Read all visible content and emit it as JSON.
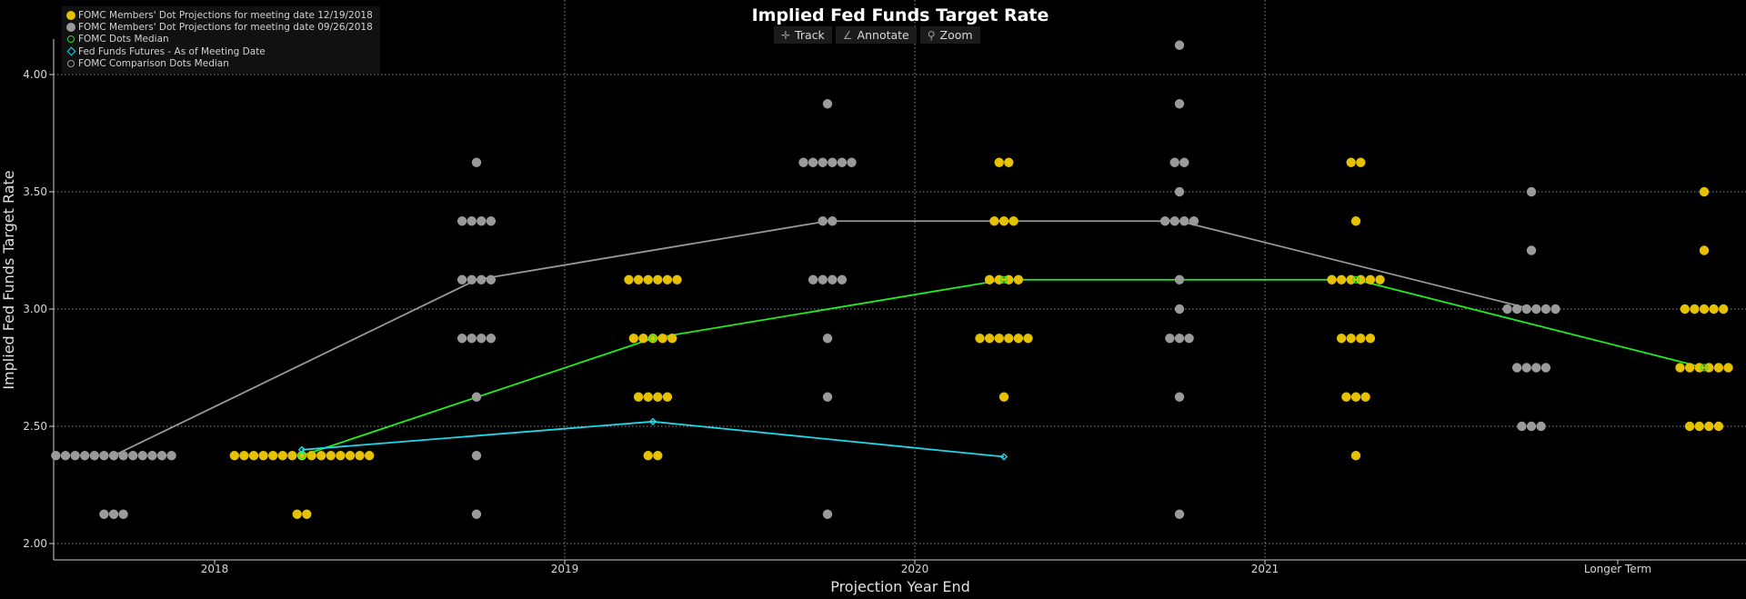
{
  "toolbar": {
    "track_label": "Track",
    "annotate_label": "Annotate",
    "zoom_label": "Zoom",
    "track_icon": "crosshair-icon",
    "annotate_icon": "pencil-icon",
    "zoom_icon": "magnifier-icon"
  },
  "chart_data": {
    "type": "scatter",
    "title": "Implied Fed Funds Target Rate",
    "xlabel": "Projection Year End",
    "ylabel": "Implied Fed Funds Target Rate",
    "ylim": [
      1.9,
      4.2
    ],
    "yticks": [
      2.0,
      2.5,
      3.0,
      3.5,
      4.0
    ],
    "ytick_labels": [
      "2.00",
      "2.50",
      "3.00",
      "3.50",
      "4.00"
    ],
    "categories": [
      "2018",
      "2019",
      "2020",
      "2021",
      "Longer Term"
    ],
    "grid": true,
    "legend_position": "top-left",
    "legend": [
      {
        "label": "FOMC Members' Dot Projections for meeting date 12/19/2018",
        "color": "#e6c100",
        "symbol": "dot"
      },
      {
        "label": "FOMC Members' Dot Projections for meeting date 09/26/2018",
        "color": "#9a9a9a",
        "symbol": "dot"
      },
      {
        "label": "FOMC Dots Median",
        "color": "#22dd22",
        "symbol": "ring"
      },
      {
        "label": "Fed Funds Futures - As of Meeting Date",
        "color": "#22d8e8",
        "symbol": "diamond"
      },
      {
        "label": "FOMC Comparison Dots Median",
        "color": "#9a9a9a",
        "symbol": "ring"
      }
    ],
    "colors": {
      "dec": "#e6c100",
      "sep": "#9a9a9a",
      "median": "#22ee22",
      "futures": "#22d8e8",
      "comparison_median": "#999999"
    },
    "dot_projections_09_26_2018": [
      {
        "category": "2018",
        "counts": {
          "2.375": 13,
          "2.125": 3
        }
      },
      {
        "category": "2019",
        "counts": {
          "3.625": 1,
          "3.375": 4,
          "3.125": 4,
          "2.875": 4,
          "2.625": 1,
          "2.375": 1,
          "2.125": 1
        }
      },
      {
        "category": "2020",
        "counts": {
          "3.875": 1,
          "3.625": 6,
          "3.375": 2,
          "3.125": 4,
          "2.875": 1,
          "2.625": 1,
          "2.125": 1
        }
      },
      {
        "category": "2021",
        "counts": {
          "4.125": 1,
          "3.875": 1,
          "3.625": 2,
          "3.5": 1,
          "3.375": 4,
          "3.125": 1,
          "3.0": 1,
          "2.875": 3,
          "2.625": 1,
          "2.125": 1
        }
      },
      {
        "category": "Longer Term",
        "counts": {
          "3.5": 1,
          "3.25": 1,
          "3.0": 6,
          "2.75": 4,
          "2.5": 3
        }
      }
    ],
    "dot_projections_12_19_2018": [
      {
        "category": "2018",
        "counts": {
          "2.375": 15,
          "2.125": 2
        }
      },
      {
        "category": "2019",
        "counts": {
          "3.125": 6,
          "2.875": 5,
          "2.625": 4,
          "2.375": 2
        }
      },
      {
        "category": "2020",
        "counts": {
          "3.625": 2,
          "3.375": 3,
          "3.125": 4,
          "2.875": 6,
          "2.625": 1
        }
      },
      {
        "category": "2021",
        "counts": {
          "3.625": 2,
          "3.375": 1,
          "3.125": 6,
          "2.875": 4,
          "2.625": 3,
          "2.375": 1
        }
      },
      {
        "category": "Longer Term",
        "counts": {
          "3.5": 1,
          "3.25": 1,
          "3.0": 5,
          "2.75": 6,
          "2.5": 4
        }
      }
    ],
    "comparison_median": {
      "categories": [
        "2018",
        "2019",
        "2020",
        "2021",
        "Longer Term"
      ],
      "values": [
        2.375,
        3.125,
        3.375,
        3.375,
        3.0
      ]
    },
    "dots_median": {
      "categories": [
        "2018",
        "2019",
        "2020",
        "2021",
        "Longer Term"
      ],
      "values": [
        2.375,
        2.875,
        3.125,
        3.125,
        2.75
      ]
    },
    "fed_funds_futures": {
      "categories": [
        "2018",
        "2019",
        "2020"
      ],
      "values": [
        2.4,
        2.52,
        2.37
      ]
    }
  }
}
